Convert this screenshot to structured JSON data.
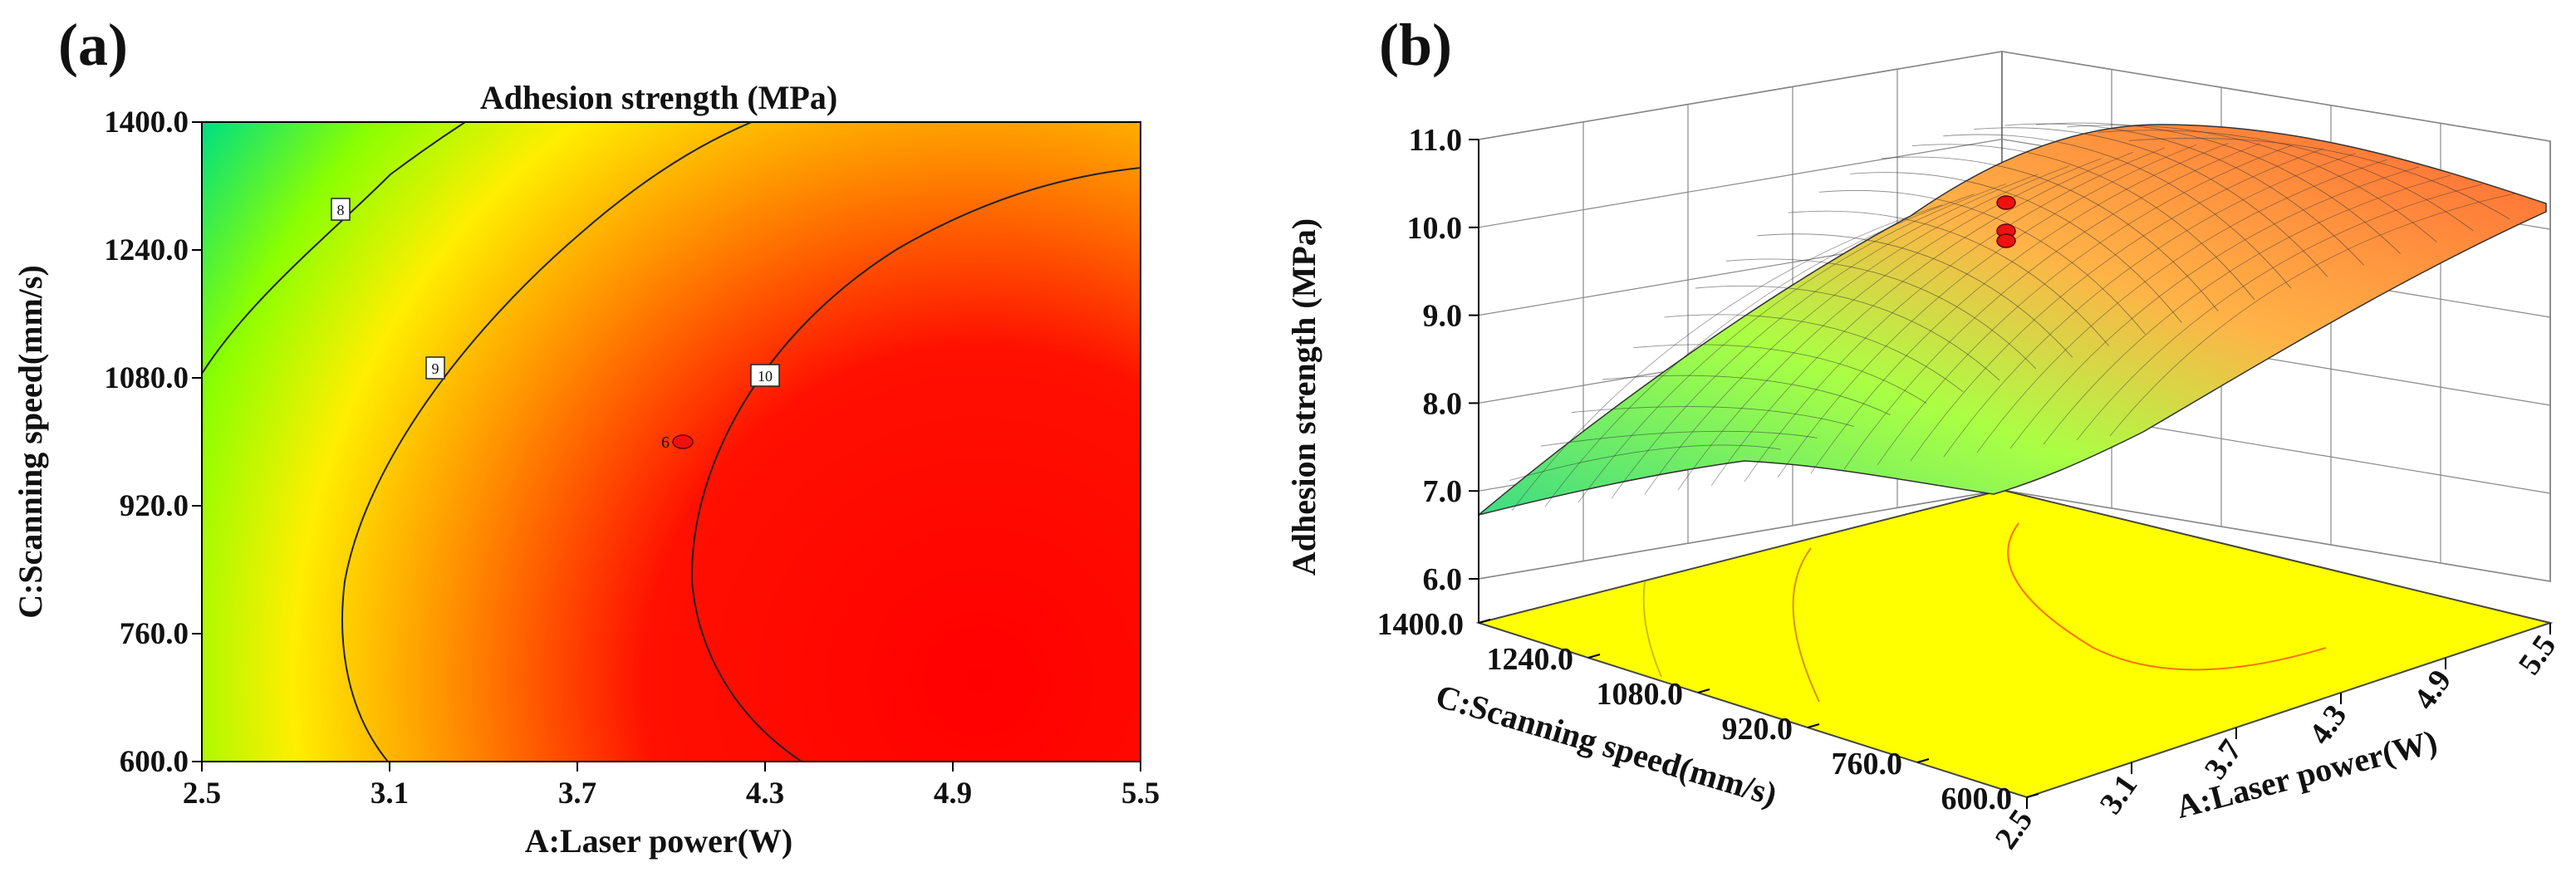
{
  "chart_data": [
    {
      "panel": "(a)",
      "type": "contour",
      "title": "Adhesion strength (MPa)",
      "xlabel": "A:Laser power(W)",
      "ylabel": "C:Scanning speed(mm/s)",
      "xlim": [
        2.5,
        5.5
      ],
      "ylim": [
        600.0,
        1400.0
      ],
      "x_ticks": [
        "2.5",
        "3.1",
        "3.7",
        "4.3",
        "4.9",
        "5.5"
      ],
      "y_ticks": [
        "600.0",
        "760.0",
        "920.0",
        "1080.0",
        "1240.0",
        "1400.0"
      ],
      "contour_levels": [
        "8",
        "9",
        "10"
      ],
      "design_point": {
        "x": 4.0,
        "y": 1000.0,
        "label": "6"
      },
      "colormap": [
        "#00e070",
        "#66ff00",
        "#ffff00",
        "#ff8c00",
        "#ff0000"
      ]
    },
    {
      "panel": "(b)",
      "type": "surface",
      "zlabel": "Adhesion strength (MPa)",
      "xlabel": "A:Laser power(W)",
      "ylabel": "C:Scanning speed(mm/s)",
      "xlim": [
        2.5,
        5.5
      ],
      "ylim": [
        600.0,
        1400.0
      ],
      "zlim": [
        6.0,
        11.0
      ],
      "x_ticks": [
        "2.5",
        "3.1",
        "3.7",
        "4.3",
        "4.9",
        "5.5"
      ],
      "y_ticks": [
        "600.0",
        "760.0",
        "920.0",
        "1080.0",
        "1240.0",
        "1400.0"
      ],
      "z_ticks": [
        "6.0",
        "7.0",
        "8.0",
        "9.0",
        "10.0",
        "11.0"
      ],
      "floor_color": "#ffff00"
    }
  ]
}
